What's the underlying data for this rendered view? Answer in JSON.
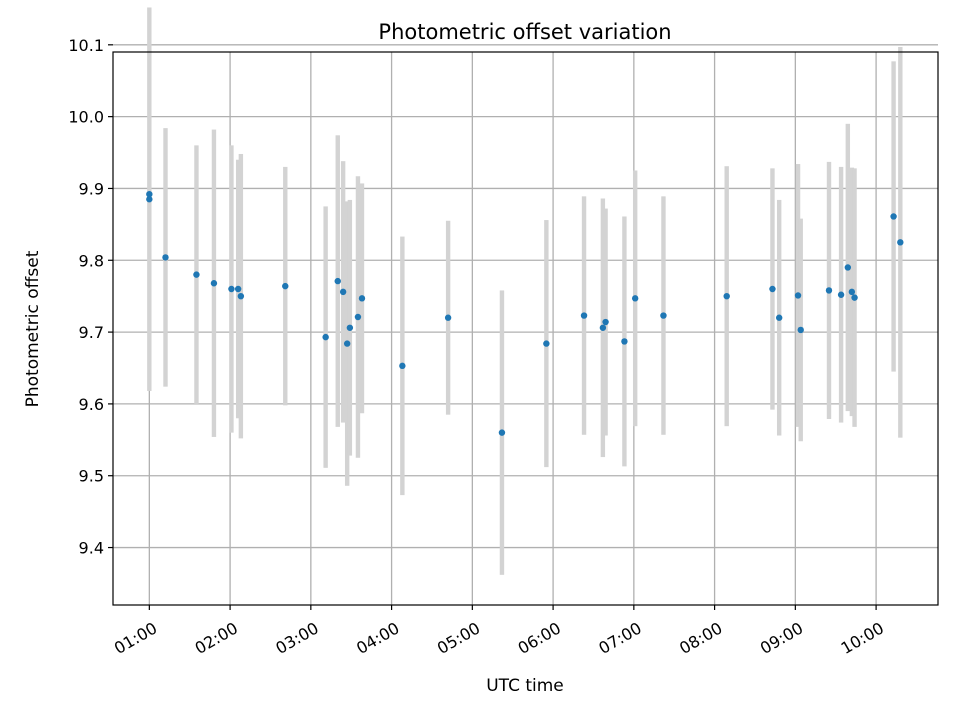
{
  "chart_data": {
    "type": "scatter",
    "title": "Photometric offset variation",
    "xlabel": "UTC time",
    "ylabel": "Photometric offset",
    "xlim": [
      "00:33",
      "10:46"
    ],
    "ylim": [
      9.32,
      10.09
    ],
    "xticks": [
      "01:00",
      "02:00",
      "03:00",
      "04:00",
      "05:00",
      "06:00",
      "07:00",
      "08:00",
      "09:00",
      "10:00"
    ],
    "yticks": [
      9.4,
      9.5,
      9.6,
      9.7,
      9.8,
      9.9,
      10.0,
      10.1
    ],
    "grid": true,
    "colors": {
      "point": "#1f77b4",
      "errorbar": "#d3d3d3",
      "grid": "#b0b0b0"
    },
    "points": [
      {
        "x": "01:00",
        "y": 9.892,
        "err": 0.0
      },
      {
        "x": "01:00",
        "y": 9.885,
        "err": 0.267
      },
      {
        "x": "01:12",
        "y": 9.804,
        "err": 0.18
      },
      {
        "x": "01:35",
        "y": 9.78,
        "err": 0.18
      },
      {
        "x": "01:48",
        "y": 9.768,
        "err": 0.214
      },
      {
        "x": "02:01",
        "y": 9.76,
        "err": 0.2
      },
      {
        "x": "02:06",
        "y": 9.76,
        "err": 0.18
      },
      {
        "x": "02:08",
        "y": 9.75,
        "err": 0.198
      },
      {
        "x": "02:41",
        "y": 9.764,
        "err": 0.166
      },
      {
        "x": "03:11",
        "y": 9.693,
        "err": 0.182
      },
      {
        "x": "03:20",
        "y": 9.771,
        "err": 0.203
      },
      {
        "x": "03:24",
        "y": 9.756,
        "err": 0.182
      },
      {
        "x": "03:27",
        "y": 9.684,
        "err": 0.198
      },
      {
        "x": "03:29",
        "y": 9.706,
        "err": 0.178
      },
      {
        "x": "03:35",
        "y": 9.721,
        "err": 0.196
      },
      {
        "x": "03:38",
        "y": 9.747,
        "err": 0.16
      },
      {
        "x": "04:08",
        "y": 9.653,
        "err": 0.18
      },
      {
        "x": "04:42",
        "y": 9.72,
        "err": 0.135
      },
      {
        "x": "05:22",
        "y": 9.56,
        "err": 0.198
      },
      {
        "x": "05:55",
        "y": 9.684,
        "err": 0.172
      },
      {
        "x": "06:23",
        "y": 9.723,
        "err": 0.166
      },
      {
        "x": "06:37",
        "y": 9.706,
        "err": 0.18
      },
      {
        "x": "06:39",
        "y": 9.714,
        "err": 0.158
      },
      {
        "x": "06:53",
        "y": 9.687,
        "err": 0.174
      },
      {
        "x": "07:01",
        "y": 9.747,
        "err": 0.178
      },
      {
        "x": "07:22",
        "y": 9.723,
        "err": 0.166
      },
      {
        "x": "08:09",
        "y": 9.75,
        "err": 0.181
      },
      {
        "x": "08:43",
        "y": 9.76,
        "err": 0.168
      },
      {
        "x": "08:48",
        "y": 9.72,
        "err": 0.164
      },
      {
        "x": "09:02",
        "y": 9.751,
        "err": 0.183
      },
      {
        "x": "09:04",
        "y": 9.703,
        "err": 0.155
      },
      {
        "x": "09:25",
        "y": 9.758,
        "err": 0.179
      },
      {
        "x": "09:34",
        "y": 9.752,
        "err": 0.178
      },
      {
        "x": "09:39",
        "y": 9.79,
        "err": 0.2
      },
      {
        "x": "09:42",
        "y": 9.756,
        "err": 0.173
      },
      {
        "x": "09:44",
        "y": 9.748,
        "err": 0.18
      },
      {
        "x": "10:13",
        "y": 9.861,
        "err": 0.216
      },
      {
        "x": "10:18",
        "y": 9.825,
        "err": 0.272
      }
    ]
  }
}
